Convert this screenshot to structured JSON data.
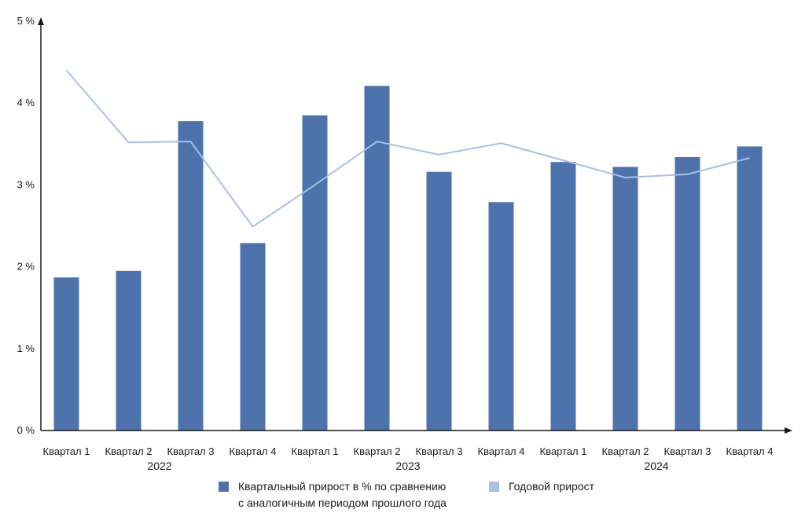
{
  "chart_data": {
    "type": "bar",
    "categories": [
      "Квартал 1",
      "Квартал 2",
      "Квартал 3",
      "Квартал 4",
      "Квартал 1",
      "Квартал 2",
      "Квартал 3",
      "Квартал 4",
      "Квартал 1",
      "Квартал 2",
      "Квартал 3",
      "Квартал 4"
    ],
    "years": [
      {
        "label": "2022",
        "start": 0,
        "end": 3
      },
      {
        "label": "2023",
        "start": 4,
        "end": 7
      },
      {
        "label": "2024",
        "start": 8,
        "end": 11
      }
    ],
    "series": [
      {
        "name": "Квартальный прирост в % по сравнению с аналогичным периодом прошлого года",
        "legend_lines": [
          "Квартальный прирост в % по сравнению",
          "с аналогичным периодом прошлого года"
        ],
        "type": "bar",
        "color": "#4e72ac",
        "values": [
          1.87,
          1.95,
          3.78,
          2.29,
          3.85,
          4.21,
          3.16,
          2.79,
          3.28,
          3.22,
          3.34,
          3.47
        ]
      },
      {
        "name": "Годовой прирост",
        "type": "line",
        "color": "#a9c0e4",
        "values": [
          4.4,
          3.52,
          3.53,
          2.49,
          3.0,
          3.53,
          3.37,
          3.51,
          3.3,
          3.09,
          3.13,
          3.33
        ]
      }
    ],
    "yticks": [
      "0 %",
      "1 %",
      "2 %",
      "3 %",
      "4 %",
      "5 %"
    ],
    "ylim": [
      0,
      5
    ],
    "grid": false,
    "legend_position": "bottom"
  }
}
